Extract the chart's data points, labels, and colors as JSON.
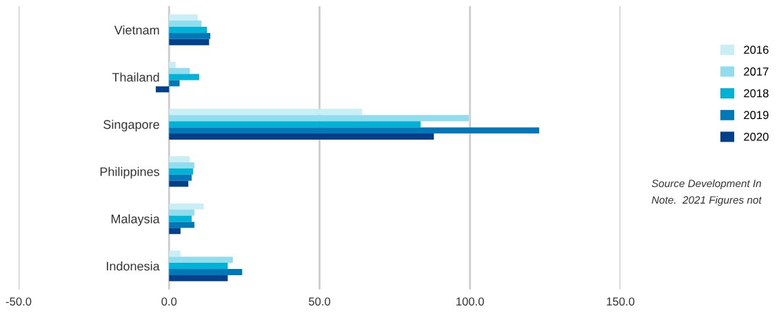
{
  "chart_data": {
    "type": "bar",
    "orientation": "horizontal",
    "categories": [
      "Vietnam",
      "Thailand",
      "Singapore",
      "Philippines",
      "Malaysia",
      "Indonesia"
    ],
    "series": [
      {
        "name": "2016",
        "color": "#c9eef6",
        "values": [
          9.5,
          2.2,
          64.2,
          6.9,
          11.5,
          3.8
        ]
      },
      {
        "name": "2017",
        "color": "#91dced",
        "values": [
          10.8,
          6.9,
          99.6,
          8.4,
          8.4,
          21.2
        ]
      },
      {
        "name": "2018",
        "color": "#00b2d6",
        "values": [
          12.6,
          10.0,
          83.6,
          8.0,
          7.5,
          19.5
        ]
      },
      {
        "name": "2019",
        "color": "#0077b6",
        "values": [
          13.7,
          3.5,
          123.0,
          7.5,
          8.4,
          24.3
        ]
      },
      {
        "name": "2020",
        "color": "#003f8a",
        "values": [
          13.3,
          -4.4,
          88.0,
          6.4,
          3.8,
          19.5
        ]
      }
    ],
    "xlim": [
      -50,
      150
    ],
    "xticks": [
      {
        "value": -50,
        "label": "-50.0"
      },
      {
        "value": 0,
        "label": "0.0"
      },
      {
        "value": 50,
        "label": "50.0"
      },
      {
        "value": 100,
        "label": "100.0"
      },
      {
        "value": 150,
        "label": "150.0"
      }
    ],
    "grid": "x",
    "legend": "right",
    "annotations": [
      "Source Development In",
      "Note.  2021 Figures not"
    ]
  }
}
